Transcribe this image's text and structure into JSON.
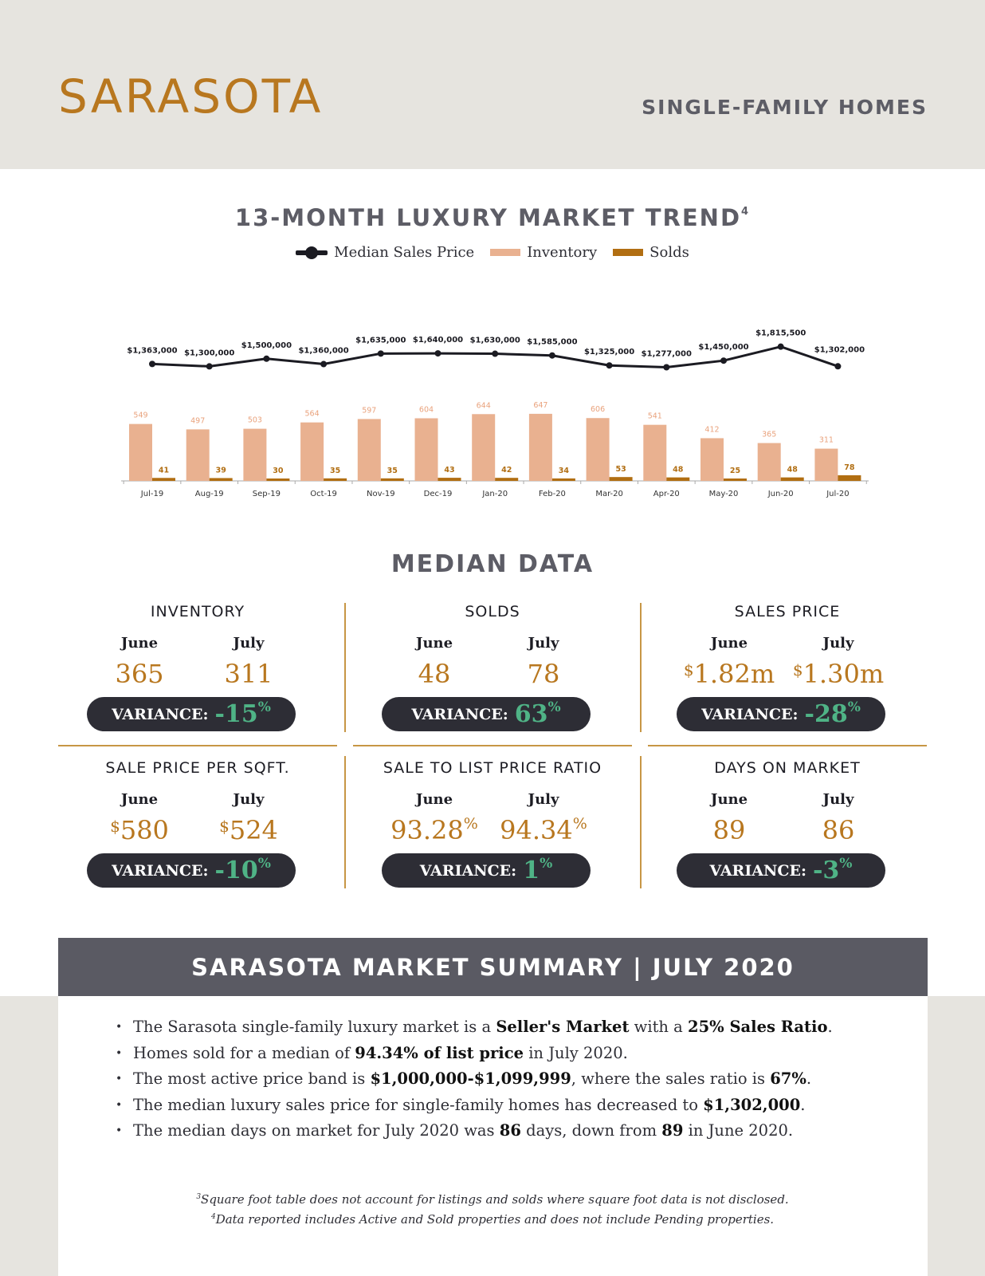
{
  "header": {
    "city": "SARASOTA",
    "subtitle": "SINGLE-FAMILY HOMES"
  },
  "trend": {
    "title": "13-MONTH LUXURY MARKET TREND",
    "title_note": "4",
    "legend": {
      "price": "Median Sales Price",
      "inventory": "Inventory",
      "solds": "Solds"
    },
    "colors": {
      "line": "#1b1b22",
      "inventory": "#e9b190",
      "solds": "#b16e12"
    }
  },
  "chart_data": {
    "type": "bar",
    "title": "13-MONTH LUXURY MARKET TREND",
    "categories": [
      "Jul-19",
      "Aug-19",
      "Sep-19",
      "Oct-19",
      "Nov-19",
      "Dec-19",
      "Jan-20",
      "Feb-20",
      "Mar-20",
      "Apr-20",
      "May-20",
      "Jun-20",
      "Jul-20"
    ],
    "series": [
      {
        "name": "Inventory",
        "kind": "bar",
        "values": [
          549,
          497,
          503,
          564,
          597,
          604,
          644,
          647,
          606,
          541,
          412,
          365,
          311
        ]
      },
      {
        "name": "Solds",
        "kind": "bar",
        "values": [
          41,
          39,
          30,
          35,
          35,
          43,
          42,
          34,
          53,
          48,
          25,
          48,
          78
        ]
      },
      {
        "name": "Median Sales Price",
        "kind": "line",
        "values": [
          1363000,
          1300000,
          1500000,
          1360000,
          1635000,
          1640000,
          1630000,
          1585000,
          1325000,
          1277000,
          1450000,
          1815500,
          1302000
        ],
        "labels": [
          "$1,363,000",
          "$1,300,000",
          "$1,500,000",
          "$1,360,000",
          "$1,635,000",
          "$1,640,000",
          "$1,630,000",
          "$1,585,000",
          "$1,325,000",
          "$1,277,000",
          "$1,450,000",
          "$1,815,500",
          "$1,302,000"
        ]
      }
    ],
    "legend": "top-center",
    "grid": false
  },
  "median": {
    "title": "MEDIAN DATA",
    "month_a": "June",
    "month_b": "July",
    "variance_label": "VARIANCE:",
    "metrics": [
      {
        "title": "INVENTORY",
        "june": "365",
        "july": "311",
        "variance": "-15",
        "prefix": "",
        "suffix": ""
      },
      {
        "title": "SOLDS",
        "june": "48",
        "july": "78",
        "variance": "63",
        "prefix": "",
        "suffix": ""
      },
      {
        "title": "SALES PRICE",
        "june": "1.82m",
        "july": "1.30m",
        "variance": "-28",
        "prefix": "$",
        "suffix": ""
      },
      {
        "title": "SALE PRICE PER SQFT.",
        "june": "580",
        "july": "524",
        "variance": "-10",
        "prefix": "$",
        "suffix": ""
      },
      {
        "title": "SALE TO LIST PRICE RATIO",
        "june": "93.28",
        "july": "94.34",
        "variance": "1",
        "prefix": "",
        "suffix": "%"
      },
      {
        "title": "DAYS ON MARKET",
        "june": "89",
        "july": "86",
        "variance": "-3",
        "prefix": "",
        "suffix": ""
      }
    ],
    "percent": "%"
  },
  "summary": {
    "title": "SARASOTA MARKET SUMMARY | JULY 2020",
    "b1": {
      "t1": "The Sarasota single-family luxury market is a ",
      "s1": "Seller's Market",
      "t2": " with a ",
      "s2": "25% Sales Ratio",
      "t3": "."
    },
    "b2": {
      "t1": "Homes sold for a median of ",
      "s1": "94.34% of list price",
      "t2": " in July 2020."
    },
    "b3": {
      "t1": "The most active price band is ",
      "s1": "$1,000,000-$1,099,999",
      "t2": ", where the sales ratio is ",
      "s2": "67%",
      "t3": "."
    },
    "b4": {
      "t1": "The median luxury sales price for single-family homes has decreased to ",
      "s1": "$1,302,000",
      "t2": "."
    },
    "b5": {
      "t1": "The median days on market for July 2020 was ",
      "s1": "86",
      "t2": " days, down from ",
      "s2": "89",
      "t3": " in June 2020."
    }
  },
  "footnotes": {
    "n3_mark": "3",
    "n3": "Square foot table does not account for listings and solds where square foot data is not disclosed.",
    "n4_mark": "4",
    "n4": "Data reported includes Active and Sold properties and does not include Pending properties."
  }
}
